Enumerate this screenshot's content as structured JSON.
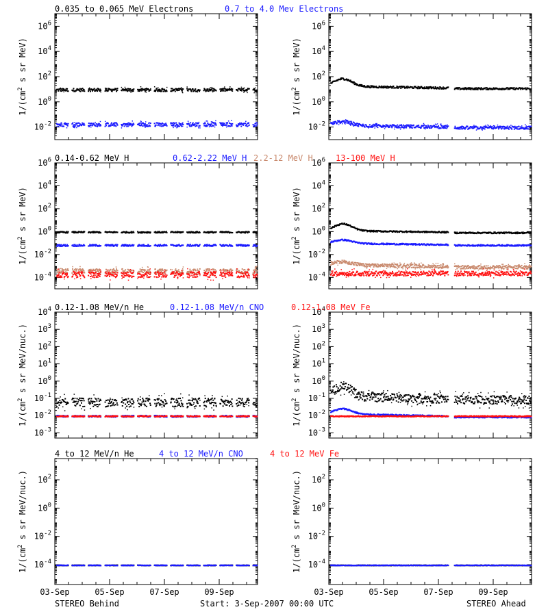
{
  "colors": {
    "black": "#000000",
    "blue": "#1a1aff",
    "tan": "#c98a6e",
    "red": "#ff1010"
  },
  "footer": {
    "left": "STEREO Behind",
    "center": "Start:  3-Sep-2007 00:00 UTC",
    "right": "STEREO Ahead"
  },
  "x_ticks": [
    "03-Sep",
    "05-Sep",
    "07-Sep",
    "09-Sep"
  ],
  "rows": [
    {
      "legend": [
        {
          "text": "0.035 to 0.065 MeV Electrons",
          "color": "black"
        },
        {
          "text": "0.7 to 4.0 Mev Electrons",
          "color": "blue"
        }
      ],
      "ylabel_main": "1/(cm",
      "ylabel_sup": "2",
      "ylabel_tail": " s sr MeV)"
    },
    {
      "legend": [
        {
          "text": "0.14-0.62 MeV H",
          "color": "black"
        },
        {
          "text": "0.62-2.22 MeV H",
          "color": "blue"
        },
        {
          "text": "2.2-12 MeV H",
          "color": "tan"
        },
        {
          "text": "13-100 MeV H",
          "color": "red"
        }
      ],
      "ylabel_main": "1/(cm",
      "ylabel_sup": "2",
      "ylabel_tail": " s sr MeV)"
    },
    {
      "legend": [
        {
          "text": "0.12-1.08 MeV/n He",
          "color": "black"
        },
        {
          "text": "0.12-1.08 MeV/n CNO",
          "color": "blue"
        },
        {
          "text": "0.12-1.08 MeV Fe",
          "color": "red"
        }
      ],
      "ylabel_main": "1/(cm",
      "ylabel_sup": "2",
      "ylabel_tail": " s sr MeV/nuc.)"
    },
    {
      "legend": [
        {
          "text": "4 to 12 MeV/n He",
          "color": "black"
        },
        {
          "text": "4 to 12 MeV/n CNO",
          "color": "blue"
        },
        {
          "text": "4 to 12 MeV Fe",
          "color": "red"
        }
      ],
      "ylabel_main": "1/(cm",
      "ylabel_sup": "2",
      "ylabel_tail": " s sr MeV/nuc.)"
    }
  ],
  "chart_data": [
    {
      "type": "scatter",
      "panel": "STEREO Behind electrons",
      "yscale": "log",
      "xlim": [
        0,
        7.4
      ],
      "ylim_exp": [
        -3,
        7
      ],
      "yticks": [
        {
          "b": "10",
          "e": "-2",
          "v": -2
        },
        {
          "b": "10",
          "e": "0",
          "v": 0
        },
        {
          "b": "10",
          "e": "2",
          "v": 2
        },
        {
          "b": "10",
          "e": "4",
          "v": 4
        },
        {
          "b": "10",
          "e": "6",
          "v": 6
        }
      ],
      "series": [
        {
          "color": "black",
          "level": 1.0,
          "jitter": 0.12
        },
        {
          "color": "blue",
          "level": -1.75,
          "jitter": 0.15
        }
      ]
    },
    {
      "type": "scatter",
      "panel": "STEREO Ahead electrons",
      "yscale": "log",
      "xlim": [
        0,
        7.4
      ],
      "ylim_exp": [
        -3,
        7
      ],
      "yticks": [
        {
          "b": "10",
          "e": "-2",
          "v": -2
        },
        {
          "b": "10",
          "e": "0",
          "v": 0
        },
        {
          "b": "10",
          "e": "2",
          "v": 2
        },
        {
          "b": "10",
          "e": "4",
          "v": 4
        },
        {
          "b": "10",
          "e": "6",
          "v": 6
        }
      ],
      "series": [
        {
          "color": "black",
          "level": 1.15,
          "jitter": 0.08
        },
        {
          "color": "blue",
          "level": -1.95,
          "jitter": 0.12
        }
      ]
    },
    {
      "type": "scatter",
      "panel": "STEREO Behind protons",
      "yscale": "log",
      "xlim": [
        0,
        7.4
      ],
      "ylim_exp": [
        -5,
        6
      ],
      "yticks": [
        {
          "b": "10",
          "e": "-4",
          "v": -4
        },
        {
          "b": "10",
          "e": "-2",
          "v": -2
        },
        {
          "b": "10",
          "e": "0",
          "v": 0
        },
        {
          "b": "10",
          "e": "2",
          "v": 2
        },
        {
          "b": "10",
          "e": "4",
          "v": 4
        },
        {
          "b": "10",
          "e": "6",
          "v": 6
        }
      ],
      "series": [
        {
          "color": "black",
          "level": 0.0,
          "jitter": 0.06
        },
        {
          "color": "blue",
          "level": -1.15,
          "jitter": 0.08
        },
        {
          "color": "tan",
          "level": -3.4,
          "jitter": 0.2
        },
        {
          "color": "red",
          "level": -3.7,
          "jitter": 0.25
        }
      ]
    },
    {
      "type": "scatter",
      "panel": "STEREO Ahead protons",
      "yscale": "log",
      "xlim": [
        0,
        7.4
      ],
      "ylim_exp": [
        -5,
        6
      ],
      "yticks": [
        {
          "b": "10",
          "e": "-4",
          "v": -4
        },
        {
          "b": "10",
          "e": "-2",
          "v": -2
        },
        {
          "b": "10",
          "e": "0",
          "v": 0
        },
        {
          "b": "10",
          "e": "2",
          "v": 2
        },
        {
          "b": "10",
          "e": "4",
          "v": 4
        },
        {
          "b": "10",
          "e": "6",
          "v": 6
        }
      ],
      "series": [
        {
          "color": "black",
          "level": 0.0,
          "jitter": 0.06
        },
        {
          "color": "blue",
          "level": -1.1,
          "jitter": 0.06
        },
        {
          "color": "tan",
          "level": -3.0,
          "jitter": 0.15
        },
        {
          "color": "red",
          "level": -3.6,
          "jitter": 0.2
        }
      ]
    },
    {
      "type": "scatter",
      "panel": "STEREO Behind heavy ions low",
      "yscale": "log",
      "xlim": [
        0,
        7.4
      ],
      "ylim_exp": [
        -3.3,
        4
      ],
      "yticks": [
        {
          "b": "10",
          "e": "-3",
          "v": -3
        },
        {
          "b": "10",
          "e": "-2",
          "v": -2
        },
        {
          "b": "10",
          "e": "-1",
          "v": -1
        },
        {
          "b": "10",
          "e": "0",
          "v": 0
        },
        {
          "b": "10",
          "e": "1",
          "v": 1
        },
        {
          "b": "10",
          "e": "2",
          "v": 2
        },
        {
          "b": "10",
          "e": "3",
          "v": 3
        },
        {
          "b": "10",
          "e": "4",
          "v": 4
        }
      ],
      "series": [
        {
          "color": "black",
          "level": -1.2,
          "jitter": 0.25
        },
        {
          "color": "blue",
          "level": -2.0,
          "jitter": 0.05
        },
        {
          "color": "red",
          "level": -2.0,
          "jitter": 0.03
        }
      ]
    },
    {
      "type": "scatter",
      "panel": "STEREO Ahead heavy ions low",
      "yscale": "log",
      "xlim": [
        0,
        7.4
      ],
      "ylim_exp": [
        -3.3,
        4
      ],
      "yticks": [
        {
          "b": "10",
          "e": "-3",
          "v": -3
        },
        {
          "b": "10",
          "e": "-2",
          "v": -2
        },
        {
          "b": "10",
          "e": "-1",
          "v": -1
        },
        {
          "b": "10",
          "e": "0",
          "v": 0
        },
        {
          "b": "10",
          "e": "1",
          "v": 1
        },
        {
          "b": "10",
          "e": "2",
          "v": 2
        },
        {
          "b": "10",
          "e": "3",
          "v": 3
        },
        {
          "b": "10",
          "e": "4",
          "v": 4
        }
      ],
      "series": [
        {
          "color": "black",
          "level": -1.0,
          "jitter": 0.25
        },
        {
          "color": "blue",
          "level": -2.0,
          "jitter": 0.04
        },
        {
          "color": "red",
          "level": -2.0,
          "jitter": 0.03
        }
      ]
    },
    {
      "type": "scatter",
      "panel": "STEREO Behind heavy ions high",
      "yscale": "log",
      "xlim": [
        0,
        7.4
      ],
      "ylim_exp": [
        -5.4,
        3.5
      ],
      "yticks": [
        {
          "b": "10",
          "e": "-4",
          "v": -4
        },
        {
          "b": "10",
          "e": "-2",
          "v": -2
        },
        {
          "b": "10",
          "e": "0",
          "v": 0
        },
        {
          "b": "10",
          "e": "2",
          "v": 2
        }
      ],
      "series": [
        {
          "color": "black",
          "level": -4.0,
          "jitter": 0.02
        },
        {
          "color": "blue",
          "level": -4.0,
          "jitter": 0.02
        }
      ]
    },
    {
      "type": "scatter",
      "panel": "STEREO Ahead heavy ions high",
      "yscale": "log",
      "xlim": [
        0,
        7.4
      ],
      "ylim_exp": [
        -5.4,
        3.5
      ],
      "yticks": [
        {
          "b": "10",
          "e": "-4",
          "v": -4
        },
        {
          "b": "10",
          "e": "-2",
          "v": -2
        },
        {
          "b": "10",
          "e": "0",
          "v": 0
        },
        {
          "b": "10",
          "e": "2",
          "v": 2
        }
      ],
      "series": [
        {
          "color": "black",
          "level": -4.0,
          "jitter": 0.02
        },
        {
          "color": "blue",
          "level": -4.0,
          "jitter": 0.02
        }
      ]
    }
  ]
}
